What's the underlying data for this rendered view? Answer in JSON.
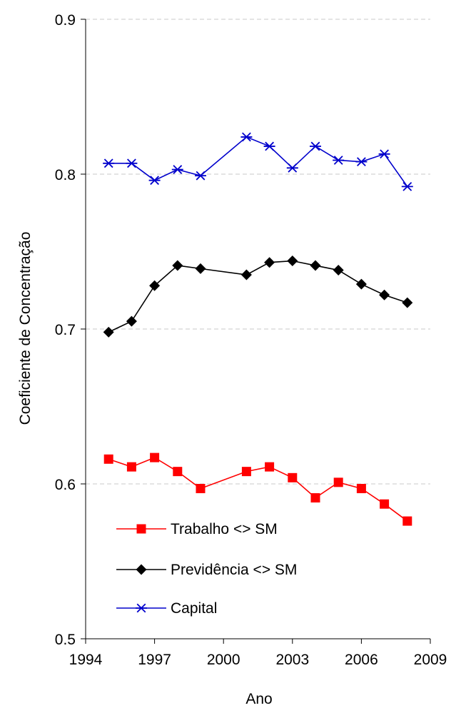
{
  "chart_data": {
    "type": "line",
    "xlabel": "Ano",
    "ylabel": "Coeficiente de Concentração",
    "xlim": [
      1994,
      2009
    ],
    "ylim": [
      0.5,
      0.9
    ],
    "x_ticks": [
      "1994",
      "1997",
      "2000",
      "2003",
      "2006",
      "2009"
    ],
    "y_ticks": [
      "0.9",
      "0.8",
      "0.7",
      "0.6",
      "0.5"
    ],
    "grid": "horizontal dashed",
    "legend_position": "bottom-left",
    "series": [
      {
        "name": "Trabalho <> SM",
        "color": "#ff0000",
        "marker": "square",
        "points": [
          {
            "x": 1995,
            "y": 0.616
          },
          {
            "x": 1996,
            "y": 0.611
          },
          {
            "x": 1997,
            "y": 0.617
          },
          {
            "x": 1998,
            "y": 0.608
          },
          {
            "x": 1999,
            "y": 0.597
          },
          {
            "x": 2001,
            "y": 0.608
          },
          {
            "x": 2002,
            "y": 0.611
          },
          {
            "x": 2003,
            "y": 0.604
          },
          {
            "x": 2004,
            "y": 0.591
          },
          {
            "x": 2005,
            "y": 0.601
          },
          {
            "x": 2006,
            "y": 0.597
          },
          {
            "x": 2007,
            "y": 0.587
          },
          {
            "x": 2008,
            "y": 0.576
          }
        ]
      },
      {
        "name": "Previdência <> SM",
        "color": "#000000",
        "marker": "diamond",
        "points": [
          {
            "x": 1995,
            "y": 0.698
          },
          {
            "x": 1996,
            "y": 0.705
          },
          {
            "x": 1997,
            "y": 0.728
          },
          {
            "x": 1998,
            "y": 0.741
          },
          {
            "x": 1999,
            "y": 0.739
          },
          {
            "x": 2001,
            "y": 0.735
          },
          {
            "x": 2002,
            "y": 0.743
          },
          {
            "x": 2003,
            "y": 0.744
          },
          {
            "x": 2004,
            "y": 0.741
          },
          {
            "x": 2005,
            "y": 0.738
          },
          {
            "x": 2006,
            "y": 0.729
          },
          {
            "x": 2007,
            "y": 0.722
          },
          {
            "x": 2008,
            "y": 0.717
          }
        ]
      },
      {
        "name": "Capital",
        "color": "#0000cc",
        "marker": "asterisk",
        "points": [
          {
            "x": 1995,
            "y": 0.807
          },
          {
            "x": 1996,
            "y": 0.807
          },
          {
            "x": 1997,
            "y": 0.796
          },
          {
            "x": 1998,
            "y": 0.803
          },
          {
            "x": 1999,
            "y": 0.799
          },
          {
            "x": 2001,
            "y": 0.824
          },
          {
            "x": 2002,
            "y": 0.818
          },
          {
            "x": 2003,
            "y": 0.804
          },
          {
            "x": 2004,
            "y": 0.818
          },
          {
            "x": 2005,
            "y": 0.809
          },
          {
            "x": 2006,
            "y": 0.808
          },
          {
            "x": 2007,
            "y": 0.813
          },
          {
            "x": 2008,
            "y": 0.792
          }
        ]
      }
    ]
  }
}
